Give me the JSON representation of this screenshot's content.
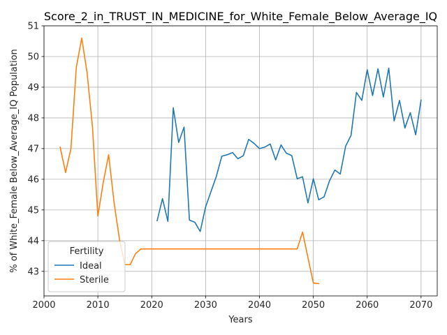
{
  "chart_data": {
    "type": "line",
    "title": "Score_2_in_TRUST_IN_MEDICINE_for_White_Female_Below_Average_IQ",
    "xlabel": "Years",
    "ylabel": "% of White_Female Below_Average_IQ Population",
    "xlim": [
      2000,
      2073
    ],
    "ylim": [
      42.2,
      51
    ],
    "xticks": [
      2000,
      2010,
      2020,
      2030,
      2040,
      2050,
      2060,
      2070
    ],
    "yticks": [
      43,
      44,
      45,
      46,
      47,
      48,
      49,
      50,
      51
    ],
    "grid": true,
    "legend": {
      "title": "Fertility",
      "placement": "lower-left"
    },
    "series": [
      {
        "name": "Ideal",
        "color": "#1f77b4",
        "x": [
          2021,
          2022,
          2023,
          2024,
          2025,
          2026,
          2027,
          2028,
          2029,
          2030,
          2031,
          2032,
          2033,
          2034,
          2035,
          2036,
          2037,
          2038,
          2039,
          2040,
          2041,
          2042,
          2043,
          2044,
          2045,
          2046,
          2047,
          2048,
          2049,
          2050,
          2051,
          2052,
          2053,
          2054,
          2055,
          2056,
          2057,
          2058,
          2059,
          2060,
          2061,
          2062,
          2063,
          2064,
          2065,
          2066,
          2067,
          2068,
          2069,
          2070
        ],
        "y": [
          44.65,
          45.37,
          44.63,
          48.33,
          47.2,
          47.7,
          44.67,
          44.6,
          44.3,
          45.1,
          45.6,
          46.1,
          46.75,
          46.8,
          46.87,
          46.67,
          46.77,
          47.3,
          47.17,
          47.0,
          47.05,
          47.15,
          46.63,
          47.12,
          46.85,
          46.77,
          46.02,
          46.08,
          45.23,
          46.02,
          45.33,
          45.43,
          45.95,
          46.3,
          46.17,
          47.08,
          47.43,
          48.83,
          48.57,
          49.57,
          48.73,
          49.6,
          48.68,
          49.62,
          47.9,
          48.57,
          47.67,
          48.17,
          47.45,
          48.58
        ]
      },
      {
        "name": "Sterile",
        "color": "#ff7f0e",
        "x": [
          2003,
          2004,
          2005,
          2006,
          2007,
          2008,
          2009,
          2010,
          2011,
          2012,
          2013,
          2014,
          2015,
          2016,
          2017,
          2018,
          2019,
          2020,
          2021,
          2022,
          2023,
          2024,
          2025,
          2026,
          2027,
          2028,
          2029,
          2030,
          2031,
          2032,
          2033,
          2034,
          2035,
          2036,
          2037,
          2038,
          2039,
          2040,
          2041,
          2042,
          2043,
          2044,
          2045,
          2046,
          2047,
          2048,
          2049,
          2050,
          2051
        ],
        "y": [
          47.05,
          46.22,
          47.0,
          49.65,
          50.6,
          49.47,
          47.7,
          44.8,
          45.9,
          46.8,
          45.25,
          44.05,
          43.22,
          43.22,
          43.58,
          43.73,
          43.73,
          43.73,
          43.73,
          43.73,
          43.73,
          43.73,
          43.73,
          43.73,
          43.73,
          43.73,
          43.73,
          43.73,
          43.73,
          43.73,
          43.73,
          43.73,
          43.73,
          43.73,
          43.73,
          43.73,
          43.73,
          43.73,
          43.73,
          43.73,
          43.73,
          43.73,
          43.73,
          43.73,
          43.73,
          44.28,
          43.45,
          42.62,
          42.6
        ]
      }
    ]
  }
}
